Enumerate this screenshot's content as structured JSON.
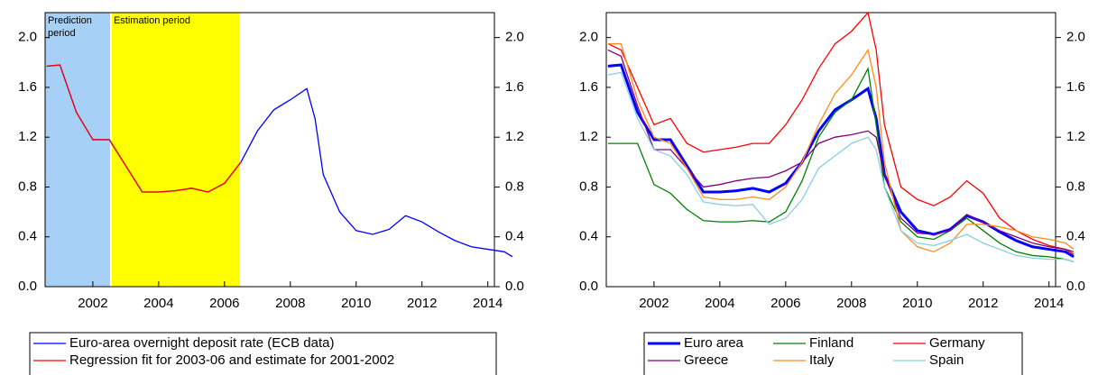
{
  "chart_data": [
    {
      "type": "line",
      "x": [
        2000.6,
        2001.0,
        2001.5,
        2002.0,
        2002.5,
        2003.0,
        2003.5,
        2004.0,
        2004.5,
        2005.0,
        2005.5,
        2006.0,
        2006.5,
        2007.0,
        2007.5,
        2008.0,
        2008.5,
        2008.75,
        2009.0,
        2009.5,
        2010.0,
        2010.5,
        2011.0,
        2011.5,
        2012.0,
        2012.5,
        2013.0,
        2013.5,
        2014.0,
        2014.5,
        2014.75
      ],
      "xlim": [
        2000.55,
        2014.2
      ],
      "xticks": [
        2002,
        2004,
        2006,
        2008,
        2010,
        2012,
        2014
      ],
      "ylim": [
        0,
        2.2
      ],
      "yticks": [
        {
          "value": 0,
          "label": "0.0"
        },
        0.4,
        0.8,
        1.2,
        1.6,
        {
          "value": 2,
          "label": "2.0"
        }
      ],
      "y2lim": [
        0,
        2.2
      ],
      "y2ticks": [
        {
          "value": 0,
          "label": "0.0"
        },
        0.4,
        0.8,
        1.2,
        1.6,
        {
          "value": 2,
          "label": "2.0"
        }
      ],
      "regions": [
        {
          "label": "Prediction period",
          "x0": 2000.55,
          "x1": 2002.55,
          "color": "#a6d0f5"
        },
        {
          "label": "Estimation period",
          "x0": 2002.55,
          "x1": 2006.47,
          "color": "#ffff00"
        }
      ],
      "legend": "bottom",
      "series": [
        {
          "name": "Euro-area overnight deposit rate (ECB data)",
          "color": "#0000ff",
          "values": [
            1.77,
            1.78,
            1.4,
            1.18,
            1.18,
            0.97,
            0.76,
            0.76,
            0.77,
            0.79,
            0.76,
            0.83,
            1.0,
            1.25,
            1.42,
            1.5,
            1.59,
            1.35,
            0.9,
            0.6,
            0.45,
            0.42,
            0.46,
            0.57,
            0.52,
            0.44,
            0.37,
            0.32,
            0.3,
            0.28,
            0.24
          ]
        },
        {
          "name": "Regression fit for 2003-06 and estimate for 2001-2002",
          "color": "#ff0000",
          "values": [
            1.77,
            1.78,
            1.4,
            1.18,
            1.18,
            0.97,
            0.76,
            0.76,
            0.77,
            0.79,
            0.76,
            0.83,
            1.0,
            null,
            null,
            null,
            null,
            null,
            null,
            null,
            null,
            null,
            null,
            null,
            null,
            null,
            null,
            null,
            null,
            null,
            null
          ]
        }
      ]
    },
    {
      "type": "line",
      "x": [
        2000.6,
        2001.0,
        2001.5,
        2002.0,
        2002.5,
        2003.0,
        2003.5,
        2004.0,
        2004.5,
        2005.0,
        2005.5,
        2006.0,
        2006.5,
        2007.0,
        2007.5,
        2008.0,
        2008.5,
        2008.75,
        2009.0,
        2009.5,
        2010.0,
        2010.5,
        2011.0,
        2011.5,
        2012.0,
        2012.5,
        2013.0,
        2013.5,
        2014.0,
        2014.5,
        2014.75
      ],
      "xlim": [
        2000.55,
        2014.2
      ],
      "xticks": [
        2002,
        2004,
        2006,
        2008,
        2010,
        2012,
        2014
      ],
      "ylim": [
        0,
        2.2
      ],
      "yticks": [
        {
          "value": 0,
          "label": "0.0"
        },
        0.4,
        0.8,
        1.2,
        1.6,
        {
          "value": 2,
          "label": "2.0"
        }
      ],
      "y2lim": [
        0,
        2.2
      ],
      "y2ticks": [
        {
          "value": 0,
          "label": "0.0"
        },
        0.4,
        0.8,
        1.2,
        1.6,
        {
          "value": 2,
          "label": "2.0"
        }
      ],
      "legend": "bottom",
      "series": [
        {
          "name": "Euro area",
          "color": "#0000ff",
          "line_width": 3,
          "values": [
            1.77,
            1.78,
            1.4,
            1.18,
            1.18,
            0.97,
            0.76,
            0.76,
            0.77,
            0.79,
            0.76,
            0.83,
            1.0,
            1.25,
            1.42,
            1.5,
            1.59,
            1.35,
            0.9,
            0.6,
            0.45,
            0.42,
            0.46,
            0.57,
            0.52,
            0.44,
            0.37,
            0.32,
            0.3,
            0.28,
            0.24
          ]
        },
        {
          "name": "Finland",
          "color": "#008000",
          "values": [
            1.15,
            1.15,
            1.15,
            0.82,
            0.75,
            0.62,
            0.53,
            0.52,
            0.52,
            0.53,
            0.52,
            0.6,
            0.85,
            1.2,
            1.4,
            1.5,
            1.75,
            1.3,
            0.8,
            0.52,
            0.4,
            0.38,
            0.45,
            0.55,
            0.45,
            0.35,
            0.28,
            0.25,
            0.24,
            0.22,
            0.2
          ]
        },
        {
          "name": "Germany",
          "color": "#ff0000",
          "values": [
            1.95,
            1.9,
            1.6,
            1.3,
            1.35,
            1.15,
            1.08,
            1.1,
            1.12,
            1.15,
            1.15,
            1.3,
            1.5,
            1.75,
            1.95,
            2.05,
            2.2,
            1.9,
            1.3,
            0.8,
            0.7,
            0.65,
            0.72,
            0.85,
            0.75,
            0.55,
            0.45,
            0.38,
            0.33,
            0.3,
            0.26
          ]
        },
        {
          "name": "Greece",
          "color": "#800080",
          "values": [
            1.9,
            1.85,
            1.45,
            1.1,
            1.1,
            0.95,
            0.8,
            0.82,
            0.85,
            0.87,
            0.88,
            0.93,
            1.0,
            1.15,
            1.2,
            1.22,
            1.25,
            1.2,
            0.9,
            0.55,
            0.43,
            0.42,
            0.45,
            0.58,
            0.52,
            0.45,
            0.4,
            0.35,
            0.32,
            0.3,
            0.28
          ]
        },
        {
          "name": "Italy",
          "color": "#ff8c1a",
          "values": [
            1.95,
            1.95,
            1.5,
            1.2,
            1.15,
            0.95,
            0.72,
            0.7,
            0.7,
            0.72,
            0.7,
            0.8,
            1.0,
            1.3,
            1.55,
            1.7,
            1.9,
            1.6,
            1.0,
            0.45,
            0.32,
            0.28,
            0.35,
            0.5,
            0.5,
            0.48,
            0.45,
            0.4,
            0.38,
            0.35,
            0.3
          ]
        },
        {
          "name": "Spain",
          "color": "#87cfe8",
          "values": [
            1.7,
            1.72,
            1.35,
            1.1,
            1.05,
            0.9,
            0.68,
            0.66,
            0.65,
            0.66,
            0.5,
            0.55,
            0.7,
            0.95,
            1.05,
            1.15,
            1.2,
            1.1,
            0.8,
            0.45,
            0.35,
            0.33,
            0.37,
            0.42,
            0.35,
            0.3,
            0.25,
            0.23,
            0.22,
            0.22,
            0.2
          ]
        }
      ]
    }
  ]
}
